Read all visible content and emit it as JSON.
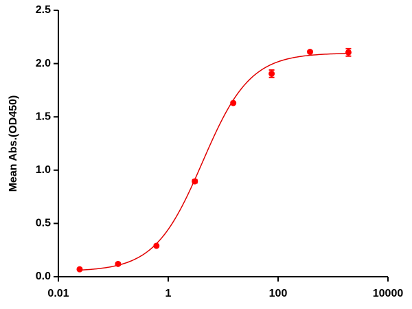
{
  "chart_data": {
    "type": "scatter",
    "y_label": "Mean Abs.(OD450)",
    "x_scale": "log",
    "x": [
      0.0244,
      0.122,
      0.61,
      3.05,
      15.26,
      76.3,
      381.5,
      1907
    ],
    "series": [
      {
        "color": "#ff0000",
        "values": [
          0.07,
          0.12,
          0.29,
          0.895,
          1.63,
          1.905,
          2.11,
          2.105
        ],
        "errors": [
          0.01,
          0.01,
          0.01,
          0.015,
          0.01,
          0.035,
          0.01,
          0.035
        ]
      }
    ],
    "curve": {
      "color": "#e00000",
      "bottom": 0.05,
      "top": 2.1,
      "ec50": 4.2,
      "hill": 1.0
    },
    "xlim": [
      0.01,
      10000
    ],
    "ylim": [
      0,
      2.5
    ],
    "xticks": [
      0.01,
      1,
      100,
      10000
    ],
    "yticks": [
      {
        "value": 0,
        "label": "0.0"
      },
      {
        "value": 0.5,
        "label": "0.5"
      },
      {
        "value": 1,
        "label": "1.0"
      },
      {
        "value": 1.5,
        "label": "1.5"
      },
      {
        "value": 2,
        "label": "2.0"
      },
      {
        "value": 2.5,
        "label": "2.5"
      }
    ]
  }
}
